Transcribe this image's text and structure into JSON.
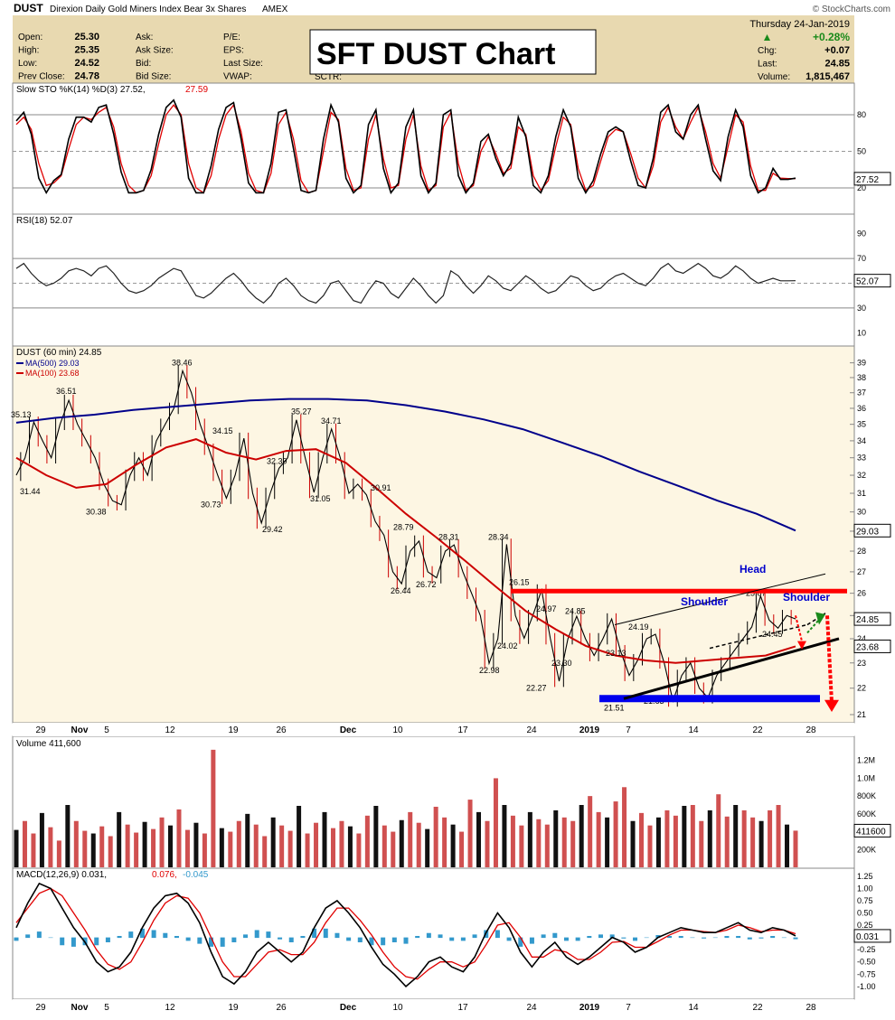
{
  "header": {
    "symbol": "DUST",
    "description": "Direxion Daily Gold Miners Index Bear 3x Shares",
    "exchange": "AMEX",
    "watermark": "© StockCharts.com",
    "date": "Thursday  24-Jan-2019",
    "quote_left": [
      {
        "label": "Open:",
        "value": "25.30"
      },
      {
        "label": "High:",
        "value": "25.35"
      },
      {
        "label": "Low:",
        "value": "24.52"
      },
      {
        "label": "Prev Close:",
        "value": "24.78"
      }
    ],
    "quote_mid": [
      "Ask:",
      "Ask Size:",
      "Bid:",
      "Bid Size:"
    ],
    "quote_mid2": [
      "P/E:",
      "EPS:",
      "Last Size:",
      "VWAP:"
    ],
    "sctr": "SCTR:",
    "change_pct": "+0.28%",
    "quote_right": [
      {
        "label": "Chg:",
        "value": "+0.07"
      },
      {
        "label": "Last:",
        "value": "24.85"
      },
      {
        "label": "Volume:",
        "value": "1,815,467"
      }
    ],
    "overlay_title": "SFT DUST Chart",
    "colors": {
      "up": "#1a8a1a",
      "accent_red": "#ff0000",
      "blue_line": "#00008b"
    }
  },
  "chart_data": [
    {
      "type": "line",
      "panel": "slow_sto",
      "title": "Slow STO %K(14) %D(3) 27.52, 27.59",
      "legend_k": "Slow STO %K(14) %D(3) 27.52,",
      "legend_d": "27.59",
      "last_value": "27.52",
      "yticks": [
        20,
        50,
        80
      ],
      "ylim": [
        0,
        100
      ],
      "k_series": [
        75,
        82,
        64,
        28,
        16,
        26,
        31,
        60,
        78,
        78,
        74,
        86,
        88,
        64,
        33,
        16,
        16,
        18,
        35,
        64,
        86,
        92,
        78,
        28,
        16,
        16,
        38,
        68,
        86,
        90,
        60,
        24,
        16,
        16,
        40,
        82,
        84,
        52,
        18,
        16,
        18,
        60,
        88,
        74,
        28,
        16,
        22,
        72,
        84,
        36,
        16,
        24,
        70,
        84,
        30,
        16,
        24,
        80,
        84,
        30,
        16,
        24,
        58,
        64,
        44,
        30,
        40,
        78,
        62,
        22,
        16,
        30,
        62,
        84,
        70,
        28,
        16,
        26,
        48,
        66,
        70,
        66,
        42,
        22,
        20,
        44,
        82,
        88,
        66,
        60,
        80,
        88,
        60,
        34,
        26,
        62,
        84,
        70,
        30,
        16,
        20,
        36,
        27,
        27,
        28
      ],
      "d_series": [
        72,
        78,
        68,
        40,
        22,
        24,
        30,
        52,
        72,
        78,
        76,
        82,
        86,
        70,
        40,
        22,
        16,
        18,
        30,
        56,
        80,
        88,
        80,
        40,
        20,
        16,
        30,
        60,
        80,
        88,
        66,
        32,
        18,
        16,
        32,
        72,
        82,
        60,
        26,
        16,
        18,
        50,
        82,
        76,
        36,
        18,
        20,
        60,
        80,
        44,
        20,
        22,
        60,
        80,
        38,
        18,
        22,
        70,
        82,
        40,
        18,
        22,
        50,
        62,
        48,
        32,
        36,
        70,
        64,
        30,
        18,
        26,
        54,
        78,
        72,
        36,
        18,
        22,
        42,
        62,
        68,
        66,
        48,
        28,
        20,
        38,
        74,
        86,
        70,
        60,
        74,
        86,
        66,
        40,
        28,
        54,
        80,
        74,
        38,
        18,
        18,
        32,
        28,
        27.6,
        27.6
      ]
    },
    {
      "type": "line",
      "panel": "rsi",
      "title": "RSI(18) 52.07",
      "legend": "RSI(18) 52.07",
      "last_value": "52.07",
      "yticks": [
        10,
        30,
        50,
        70,
        90
      ],
      "ylim": [
        0,
        100
      ],
      "series": [
        62,
        66,
        58,
        52,
        48,
        50,
        54,
        60,
        62,
        60,
        56,
        62,
        64,
        58,
        50,
        44,
        42,
        44,
        48,
        54,
        58,
        62,
        60,
        50,
        40,
        38,
        42,
        48,
        54,
        58,
        52,
        44,
        38,
        34,
        40,
        50,
        54,
        48,
        40,
        36,
        34,
        40,
        50,
        52,
        44,
        36,
        34,
        44,
        52,
        50,
        42,
        38,
        46,
        54,
        48,
        40,
        34,
        40,
        60,
        56,
        48,
        42,
        48,
        56,
        52,
        46,
        44,
        50,
        56,
        52,
        46,
        42,
        44,
        50,
        56,
        54,
        48,
        44,
        46,
        52,
        56,
        58,
        54,
        50,
        48,
        54,
        62,
        66,
        60,
        58,
        62,
        66,
        62,
        56,
        54,
        58,
        64,
        60,
        54,
        50,
        52,
        54,
        52,
        52,
        52.07
      ]
    },
    {
      "type": "line",
      "panel": "price",
      "title": "DUST (60 min) 24.85",
      "legend_price": "DUST (60 min) 24.85",
      "legend_ma500": "MA(500) 29.03",
      "legend_ma100": "MA(100) 23.68",
      "ylim": [
        20.8,
        39.6
      ],
      "log_scale": true,
      "yticks": [
        21,
        22,
        23,
        24,
        25,
        26,
        27,
        28,
        29,
        30,
        31,
        32,
        33,
        34,
        35,
        36,
        37,
        38,
        39
      ],
      "last_price": "24.85",
      "ma500_last": "29.03",
      "ma100_last": "23.68",
      "price_path": [
        32,
        33,
        35.13,
        34,
        33,
        35,
        36.51,
        35,
        34,
        33,
        31.5,
        30.6,
        30.38,
        32,
        33,
        32,
        34,
        35,
        36,
        38.46,
        37,
        35,
        33.5,
        32,
        30.73,
        32,
        34.15,
        31,
        29.42,
        31,
        32.39,
        33,
        35.27,
        33,
        31.05,
        33,
        34.71,
        33,
        31,
        31.5,
        30.91,
        29.5,
        28.79,
        27,
        26.44,
        28,
        28.5,
        27,
        26.72,
        28,
        28.31,
        27,
        26,
        25,
        22.98,
        24,
        28.34,
        25,
        24.02,
        25,
        26.15,
        24,
        22.27,
        24,
        24.97,
        24,
        23.3,
        24,
        24.85,
        23.5,
        22.5,
        23.13,
        24,
        24.19,
        23,
        21.51,
        22.5,
        23,
        22,
        21.63,
        22.5,
        23,
        23.5,
        24,
        24.5,
        25.87,
        24.8,
        24.45,
        25,
        24.85
      ],
      "ma500_path": [
        35.1,
        35.4,
        35.6,
        35.9,
        36.1,
        36.3,
        36.5,
        36.6,
        36.6,
        36.5,
        36.2,
        35.8,
        35.3,
        34.7,
        33.9,
        33.1,
        32.2,
        31.4,
        30.6,
        29.9,
        29.03
      ],
      "ma100_path": [
        33,
        32,
        31.3,
        31.5,
        32.6,
        33.6,
        34.1,
        33.3,
        32.9,
        33.4,
        33.5,
        32.7,
        31.3,
        29.9,
        28.7,
        27.5,
        26.3,
        25.2,
        24.4,
        23.7,
        23.3,
        23.1,
        23.0,
        23.1,
        23.2,
        23.3,
        23.68
      ],
      "price_labels": [
        "35.13",
        "36.51",
        "31.44",
        "30.38",
        "38.46",
        "34.15",
        "30.73",
        "29.42",
        "32.39",
        "35.27",
        "34.71",
        "31.05",
        "30.91",
        "28.79",
        "26.44",
        "26.72",
        "28.31",
        "28.34",
        "26.15",
        "22.98",
        "24.02",
        "24.97",
        "22.27",
        "23.30",
        "24.85",
        "24.19",
        "23.13",
        "21.51",
        "21.63",
        "25.87",
        "24.45"
      ],
      "annotations": {
        "head": "Head",
        "shoulder_left": "Shoulder",
        "shoulder_right": "Shoulder"
      },
      "neckline_value": 26.1,
      "support_value": 21.6
    },
    {
      "type": "bar",
      "panel": "volume",
      "title": "Volume 411,600",
      "legend": "Volume 411,600",
      "last_value": "411600",
      "yticks_labels": [
        "200K",
        "400K",
        "600K",
        "800K",
        "1.0M",
        "1.2M"
      ],
      "yticks": [
        200000,
        400000,
        600000,
        800000,
        1000000,
        1200000
      ],
      "ylim": [
        0,
        1400000
      ],
      "values": [
        420000,
        520000,
        380000,
        610000,
        450000,
        300000,
        700000,
        520000,
        410000,
        380000,
        460000,
        350000,
        620000,
        480000,
        390000,
        510000,
        430000,
        560000,
        470000,
        650000,
        420000,
        500000,
        380000,
        1320000,
        440000,
        400000,
        520000,
        600000,
        480000,
        350000,
        560000,
        470000,
        410000,
        690000,
        380000,
        500000,
        620000,
        440000,
        520000,
        460000,
        380000,
        580000,
        690000,
        470000,
        400000,
        530000,
        620000,
        500000,
        430000,
        680000,
        560000,
        480000,
        400000,
        760000,
        620000,
        520000,
        1000000,
        700000,
        580000,
        470000,
        620000,
        540000,
        480000,
        640000,
        560000,
        520000,
        700000,
        800000,
        620000,
        560000,
        740000,
        900000,
        520000,
        610000,
        470000,
        560000,
        640000,
        580000,
        690000,
        700000,
        520000,
        640000,
        820000,
        570000,
        700000,
        640000,
        560000,
        520000,
        640000,
        700000,
        480000,
        411600
      ]
    },
    {
      "type": "line",
      "panel": "macd",
      "title": "MACD(12,26,9) 0.031, 0.076, -0.045",
      "legend_macd": "MACD(12,26,9) 0.031,",
      "legend_signal": "0.076,",
      "legend_hist": "-0.045",
      "last_value": "0.031",
      "yticks": [
        -1.0,
        -0.75,
        -0.5,
        -0.25,
        0.0,
        0.25,
        0.5,
        0.75,
        1.0,
        1.25
      ],
      "ytick_labels": [
        "-1.00",
        "-0.75",
        "-0.50",
        "-0.25",
        "",
        "0.25",
        "0.50",
        "0.75",
        "1.00",
        "1.25"
      ],
      "ylim": [
        -1.15,
        1.32
      ],
      "macd": [
        0.2,
        0.7,
        1.1,
        1.0,
        0.6,
        0.2,
        -0.1,
        -0.5,
        -0.7,
        -0.6,
        -0.3,
        0.2,
        0.6,
        0.85,
        0.9,
        0.7,
        0.3,
        -0.3,
        -0.8,
        -0.95,
        -0.7,
        -0.3,
        -0.1,
        -0.3,
        -0.5,
        -0.3,
        0.2,
        0.6,
        0.75,
        0.5,
        0.2,
        -0.2,
        -0.55,
        -0.75,
        -1.0,
        -0.8,
        -0.5,
        -0.4,
        -0.6,
        -0.7,
        -0.4,
        0.1,
        0.5,
        0.2,
        -0.3,
        -0.6,
        -0.3,
        -0.1,
        -0.4,
        -0.55,
        -0.4,
        -0.2,
        0.0,
        -0.1,
        -0.3,
        -0.2,
        0.0,
        0.1,
        0.2,
        0.15,
        0.1,
        0.1,
        0.2,
        0.3,
        0.15,
        0.1,
        0.2,
        0.15,
        0.031
      ],
      "signal": [
        0.3,
        0.6,
        0.9,
        1.0,
        0.85,
        0.5,
        0.15,
        -0.25,
        -0.55,
        -0.65,
        -0.5,
        -0.1,
        0.35,
        0.7,
        0.85,
        0.8,
        0.5,
        0.0,
        -0.5,
        -0.8,
        -0.8,
        -0.55,
        -0.3,
        -0.25,
        -0.35,
        -0.35,
        -0.1,
        0.3,
        0.6,
        0.6,
        0.35,
        0.05,
        -0.3,
        -0.6,
        -0.8,
        -0.85,
        -0.65,
        -0.5,
        -0.5,
        -0.6,
        -0.5,
        -0.15,
        0.25,
        0.3,
        0.0,
        -0.4,
        -0.4,
        -0.25,
        -0.3,
        -0.45,
        -0.45,
        -0.3,
        -0.1,
        -0.08,
        -0.2,
        -0.2,
        -0.08,
        0.05,
        0.15,
        0.15,
        0.12,
        0.1,
        0.15,
        0.25,
        0.2,
        0.12,
        0.15,
        0.15,
        0.076
      ]
    }
  ],
  "x_axis": {
    "labels": [
      "29",
      "Nov",
      "5",
      "12",
      "19",
      "26",
      "Dec",
      "10",
      "17",
      "24",
      "2019",
      "7",
      "14",
      "22",
      "28"
    ],
    "bold": [
      "Nov",
      "Dec",
      "2019"
    ]
  }
}
